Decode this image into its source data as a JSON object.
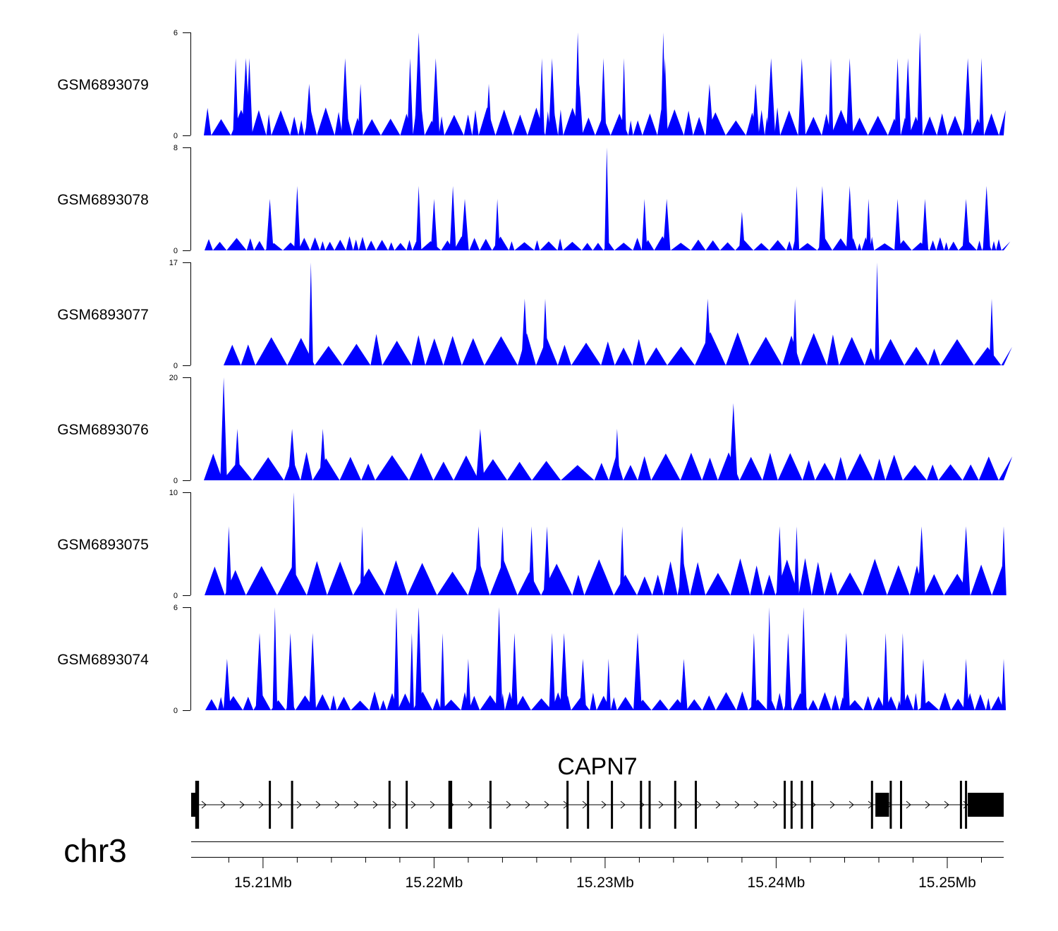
{
  "colors": {
    "signal": "#0000ff",
    "gene": "#000000",
    "axis": "#000000",
    "background": "#ffffff"
  },
  "chart_data": {
    "type": "area",
    "title": "",
    "chromosome": "chr3",
    "xlabel": "",
    "xlim": [
      15.2058,
      15.2533
    ],
    "x_ticks": [
      {
        "value": 15.21,
        "label": "15.21Mb"
      },
      {
        "value": 15.22,
        "label": "15.22Mb"
      },
      {
        "value": 15.23,
        "label": "15.23Mb"
      },
      {
        "value": 15.24,
        "label": "15.24Mb"
      },
      {
        "value": 15.25,
        "label": "15.25Mb"
      }
    ],
    "minor_ticks": [
      15.208,
      15.212,
      15.214,
      15.216,
      15.218,
      15.222,
      15.224,
      15.226,
      15.228,
      15.232,
      15.234,
      15.236,
      15.238,
      15.242,
      15.244,
      15.246,
      15.248,
      15.252
    ],
    "series": [
      {
        "name": "GSM6893079",
        "ylim": [
          0,
          6
        ],
        "baseline": 1.5,
        "peaks": [
          [
            15.2084,
            4.5
          ],
          [
            15.209,
            4.5
          ],
          [
            15.2092,
            4.5
          ],
          [
            15.2127,
            3.0
          ],
          [
            15.2148,
            4.5
          ],
          [
            15.2157,
            3.0
          ],
          [
            15.2186,
            4.5
          ],
          [
            15.2191,
            6.0
          ],
          [
            15.2201,
            4.5
          ],
          [
            15.2232,
            3.0
          ],
          [
            15.2263,
            4.5
          ],
          [
            15.2269,
            4.5
          ],
          [
            15.2284,
            6.0
          ],
          [
            15.2285,
            3.0
          ],
          [
            15.2299,
            4.5
          ],
          [
            15.2311,
            4.5
          ],
          [
            15.2334,
            6.0
          ],
          [
            15.2335,
            4.5
          ],
          [
            15.2361,
            3.0
          ],
          [
            15.2388,
            3.0
          ],
          [
            15.2397,
            4.5
          ],
          [
            15.2415,
            4.5
          ],
          [
            15.2432,
            4.5
          ],
          [
            15.2443,
            4.5
          ],
          [
            15.2471,
            4.5
          ],
          [
            15.2477,
            4.5
          ],
          [
            15.2484,
            6.0
          ],
          [
            15.2512,
            4.5
          ],
          [
            15.252,
            4.5
          ]
        ]
      },
      {
        "name": "GSM6893078",
        "ylim": [
          0,
          8
        ],
        "baseline": 1.0,
        "peaks": [
          [
            15.2104,
            4.0
          ],
          [
            15.212,
            5.0
          ],
          [
            15.2191,
            5.0
          ],
          [
            15.22,
            4.0
          ],
          [
            15.2211,
            5.0
          ],
          [
            15.2218,
            4.0
          ],
          [
            15.2237,
            4.0
          ],
          [
            15.2301,
            8.0
          ],
          [
            15.2323,
            4.0
          ],
          [
            15.2336,
            4.0
          ],
          [
            15.238,
            3.0
          ],
          [
            15.2412,
            5.0
          ],
          [
            15.2427,
            5.0
          ],
          [
            15.2443,
            5.0
          ],
          [
            15.2454,
            4.0
          ],
          [
            15.2471,
            4.0
          ],
          [
            15.2487,
            4.0
          ],
          [
            15.2511,
            4.0
          ],
          [
            15.2523,
            5.0
          ]
        ]
      },
      {
        "name": "GSM6893077",
        "ylim": [
          0,
          17
        ],
        "baseline": 5.0,
        "peaks": [
          [
            15.2128,
            17.0
          ],
          [
            15.2253,
            11.0
          ],
          [
            15.2265,
            11.0
          ],
          [
            15.236,
            11.0
          ],
          [
            15.2411,
            11.0
          ],
          [
            15.2459,
            17.0
          ],
          [
            15.2526,
            11.0
          ]
        ]
      },
      {
        "name": "GSM6893076",
        "ylim": [
          0,
          20
        ],
        "baseline": 5.0,
        "peaks": [
          [
            15.2077,
            20.0
          ],
          [
            15.2085,
            10.0
          ],
          [
            15.2117,
            10.0
          ],
          [
            15.2135,
            10.0
          ],
          [
            15.2227,
            10.0
          ],
          [
            15.2307,
            10.0
          ],
          [
            15.2375,
            15.0
          ]
        ]
      },
      {
        "name": "GSM6893075",
        "ylim": [
          0,
          10
        ],
        "baseline": 3.3,
        "peaks": [
          [
            15.208,
            6.7
          ],
          [
            15.2118,
            10.0
          ],
          [
            15.2158,
            6.7
          ],
          [
            15.2226,
            6.7
          ],
          [
            15.224,
            6.7
          ],
          [
            15.2257,
            6.7
          ],
          [
            15.2266,
            6.7
          ],
          [
            15.231,
            6.7
          ],
          [
            15.2345,
            6.7
          ],
          [
            15.2402,
            6.7
          ],
          [
            15.2412,
            6.7
          ],
          [
            15.2485,
            6.7
          ],
          [
            15.2511,
            6.7
          ],
          [
            15.2533,
            6.7
          ]
        ]
      },
      {
        "name": "GSM6893074",
        "ylim": [
          0,
          6
        ],
        "baseline": 1.0,
        "peaks": [
          [
            15.2079,
            3.0
          ],
          [
            15.2098,
            4.5
          ],
          [
            15.2107,
            6.0
          ],
          [
            15.2116,
            4.5
          ],
          [
            15.2129,
            4.5
          ],
          [
            15.2178,
            6.0
          ],
          [
            15.2187,
            4.5
          ],
          [
            15.2191,
            6.0
          ],
          [
            15.2205,
            4.5
          ],
          [
            15.222,
            3.0
          ],
          [
            15.2238,
            6.0
          ],
          [
            15.2247,
            4.5
          ],
          [
            15.2269,
            4.5
          ],
          [
            15.2276,
            4.5
          ],
          [
            15.2287,
            3.0
          ],
          [
            15.2302,
            3.0
          ],
          [
            15.2319,
            4.5
          ],
          [
            15.2346,
            3.0
          ],
          [
            15.2387,
            4.5
          ],
          [
            15.2396,
            6.0
          ],
          [
            15.2407,
            4.5
          ],
          [
            15.2416,
            6.0
          ],
          [
            15.2441,
            4.5
          ],
          [
            15.2464,
            4.5
          ],
          [
            15.2474,
            4.5
          ],
          [
            15.2486,
            3.0
          ],
          [
            15.2511,
            3.0
          ],
          [
            15.2533,
            3.0
          ]
        ]
      }
    ],
    "gene_track": {
      "label": "CAPN7",
      "strand": "+",
      "exons": [
        15.2061,
        15.2062,
        15.2104,
        15.2117,
        15.2174,
        15.2184,
        15.2209,
        15.221,
        15.2233,
        15.2278,
        15.229,
        15.2304,
        15.2321,
        15.2326,
        15.2341,
        15.2353,
        15.2405,
        15.2409,
        15.2415,
        15.2421,
        15.2456,
        15.2467,
        15.2473,
        15.2508,
        15.2511
      ],
      "utr_blocks": [
        [
          15.2058,
          15.2061
        ],
        [
          15.2458,
          15.2466
        ],
        [
          15.2512,
          15.2533
        ]
      ]
    }
  }
}
